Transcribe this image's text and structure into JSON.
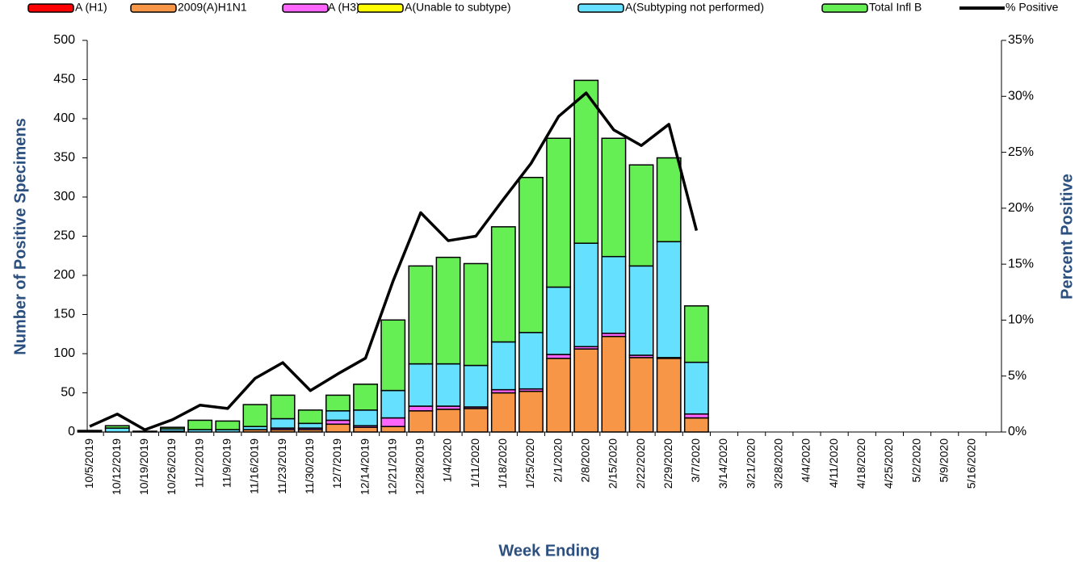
{
  "chart_data": {
    "type": "bar",
    "x_label": "Week Ending",
    "y_label": "Number of  Positive Specimens",
    "y2_label": "Percent Positive",
    "categories": [
      "10/5/2019",
      "10/12/2019",
      "10/19/2019",
      "10/26/2019",
      "11/2/2019",
      "11/9/2019",
      "11/16/2019",
      "11/23/2019",
      "11/30/2019",
      "12/7/2019",
      "12/14/2019",
      "12/21/2019",
      "12/28/2019",
      "1/4/2020",
      "1/11/2020",
      "1/18/2020",
      "1/25/2020",
      "2/1/2020",
      "2/8/2020",
      "2/15/2020",
      "2/22/2020",
      "2/29/2020",
      "3/7/2020",
      "3/14/2020",
      "3/21/2020",
      "3/28/2020",
      "4/4/2020",
      "4/11/2020",
      "4/18/2020",
      "4/25/2020",
      "5/2/2020",
      "5/9/2020",
      "5/16/2020"
    ],
    "series": [
      {
        "name": "A (H1)",
        "color": "#ff0000",
        "values": [
          0,
          0,
          0,
          0,
          0,
          0,
          0,
          0,
          0,
          0,
          0,
          0,
          0,
          0,
          0,
          0,
          0,
          0,
          0,
          0,
          0,
          0,
          0,
          0,
          0,
          0,
          0,
          0,
          0,
          0,
          0,
          0,
          0
        ]
      },
      {
        "name": "2009(A)H1N1",
        "color": "#f79646",
        "values": [
          0,
          0,
          0,
          1,
          0,
          0,
          3,
          3,
          3,
          10,
          6,
          7,
          27,
          29,
          30,
          50,
          52,
          94,
          106,
          122,
          95,
          94,
          18,
          0,
          0,
          0,
          0,
          0,
          0,
          0,
          0,
          0,
          0
        ]
      },
      {
        "name": "A (H3)",
        "color": "#ff66ff",
        "values": [
          0,
          0,
          0,
          0,
          0,
          0,
          0,
          2,
          2,
          5,
          2,
          11,
          6,
          4,
          2,
          4,
          3,
          5,
          3,
          4,
          3,
          1,
          5,
          0,
          0,
          0,
          0,
          0,
          0,
          0,
          0,
          0,
          0
        ]
      },
      {
        "name": "A(Unable to subtype)",
        "color": "#ffff00",
        "values": [
          0,
          0,
          0,
          0,
          0,
          0,
          0,
          0,
          0,
          0,
          0,
          0,
          0,
          0,
          0,
          0,
          0,
          0,
          0,
          0,
          0,
          0,
          0,
          0,
          0,
          0,
          0,
          0,
          0,
          0,
          0,
          0,
          0
        ]
      },
      {
        "name": "A(Subtyping not performed)",
        "color": "#66e0ff",
        "values": [
          1,
          5,
          0,
          3,
          3,
          3,
          4,
          12,
          6,
          12,
          20,
          35,
          54,
          54,
          53,
          61,
          72,
          86,
          132,
          98,
          114,
          148,
          66,
          0,
          0,
          0,
          0,
          0,
          0,
          0,
          0,
          0,
          0
        ]
      },
      {
        "name": "Total Infl B",
        "color": "#66ee55",
        "values": [
          1,
          3,
          1,
          2,
          12,
          11,
          28,
          30,
          17,
          20,
          33,
          90,
          125,
          136,
          130,
          147,
          198,
          190,
          208,
          151,
          129,
          107,
          72,
          0,
          0,
          0,
          0,
          0,
          0,
          0,
          0,
          0,
          0
        ]
      },
      {
        "name": "% Positive",
        "type": "line",
        "axis": "y2",
        "color": "#000000",
        "values": [
          0.5,
          1.6,
          0.2,
          1.1,
          2.4,
          2.1,
          4.8,
          6.2,
          3.7,
          5.2,
          6.6,
          13.5,
          19.6,
          17.1,
          17.5,
          20.8,
          24.0,
          28.2,
          30.3,
          27.0,
          25.6,
          27.5,
          18.0,
          null,
          null,
          null,
          null,
          null,
          null,
          null,
          null,
          null,
          null
        ]
      }
    ],
    "ylim": [
      0,
      500
    ],
    "yticks": [
      0,
      50,
      100,
      150,
      200,
      250,
      300,
      350,
      400,
      450,
      500
    ],
    "y2lim": [
      0,
      35
    ],
    "y2ticks": [
      {
        "value": 0,
        "label": "0%"
      },
      {
        "value": 5,
        "label": "5%"
      },
      {
        "value": 10,
        "label": "10%"
      },
      {
        "value": 15,
        "label": "15%"
      },
      {
        "value": 20,
        "label": "20%"
      },
      {
        "value": 25,
        "label": "25%"
      },
      {
        "value": 30,
        "label": "30%"
      },
      {
        "value": 35,
        "label": "35%"
      }
    ],
    "grid": false
  }
}
